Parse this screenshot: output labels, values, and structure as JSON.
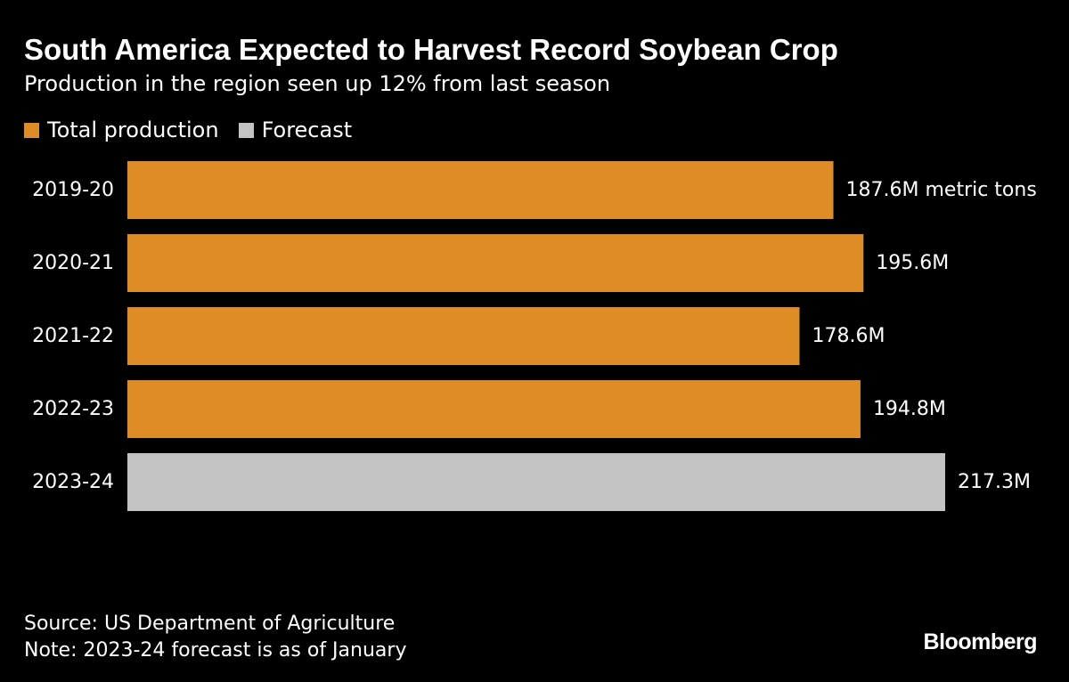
{
  "chart_data": {
    "type": "bar",
    "orientation": "horizontal",
    "title": "South America Expected to Harvest Record Soybean Crop",
    "subtitle": "Production in the region seen up 12% from last season",
    "categories": [
      "2019-20",
      "2020-21",
      "2021-22",
      "2022-23",
      "2023-24"
    ],
    "values": [
      187.6,
      195.6,
      178.6,
      194.8,
      217.3
    ],
    "value_labels": [
      "187.6M metric tons",
      "195.6M",
      "178.6M",
      "194.8M",
      "217.3M"
    ],
    "unit": "M metric tons",
    "series_kind": [
      "Total production",
      "Total production",
      "Total production",
      "Total production",
      "Forecast"
    ],
    "legend": [
      {
        "name": "Total production",
        "color": "#de8c26"
      },
      {
        "name": "Forecast",
        "color": "#c3c3c3"
      }
    ],
    "legend_placement": "top-left",
    "xlim": [
      0,
      217.3
    ],
    "grid": false,
    "colors": {
      "Total production": "#de8c26",
      "Forecast": "#c3c3c3"
    }
  },
  "footer": {
    "source": "Source: US Department of Agriculture",
    "note": "Note: 2023-24 forecast is as of January",
    "brand": "Bloomberg"
  }
}
